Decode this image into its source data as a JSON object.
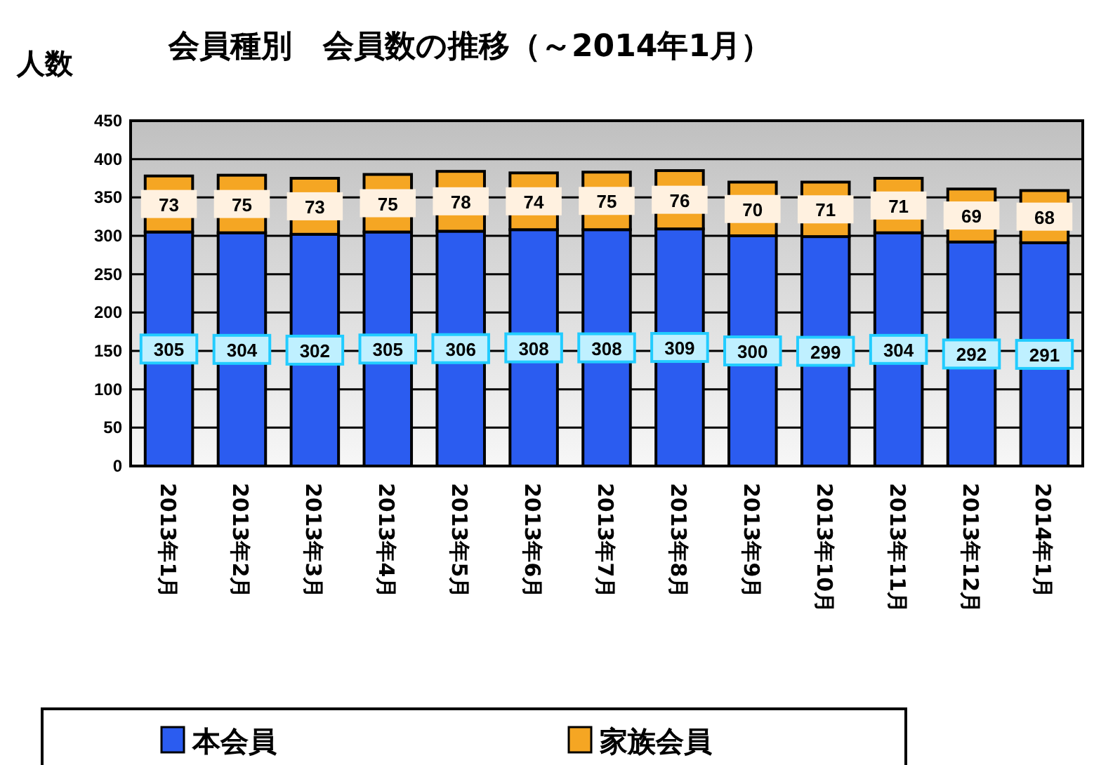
{
  "chart_data": {
    "type": "bar",
    "title": "会員種別　会員数の推移（～2014年1月）",
    "ylabel": "人数",
    "categories": [
      "2013年1月",
      "2013年2月",
      "2013年3月",
      "2013年4月",
      "2013年5月",
      "2013年6月",
      "2013年7月",
      "2013年8月",
      "2013年9月",
      "2013年10月",
      "2013年11月",
      "2013年12月",
      "2014年1月"
    ],
    "series": [
      {
        "name": "本会員",
        "color": "#2b5cf0",
        "values": [
          305,
          304,
          302,
          305,
          306,
          308,
          308,
          309,
          300,
          299,
          304,
          292,
          291
        ]
      },
      {
        "name": "家族会員",
        "color": "#f5a623",
        "values": [
          73,
          75,
          73,
          75,
          78,
          74,
          75,
          76,
          70,
          71,
          71,
          69,
          68
        ]
      }
    ],
    "stacked": true,
    "ylim": [
      0,
      450
    ],
    "yticks": [
      0,
      50,
      100,
      150,
      200,
      250,
      300,
      350,
      400,
      450
    ],
    "grid": "y",
    "data_labels": true,
    "legend": "bottom"
  }
}
